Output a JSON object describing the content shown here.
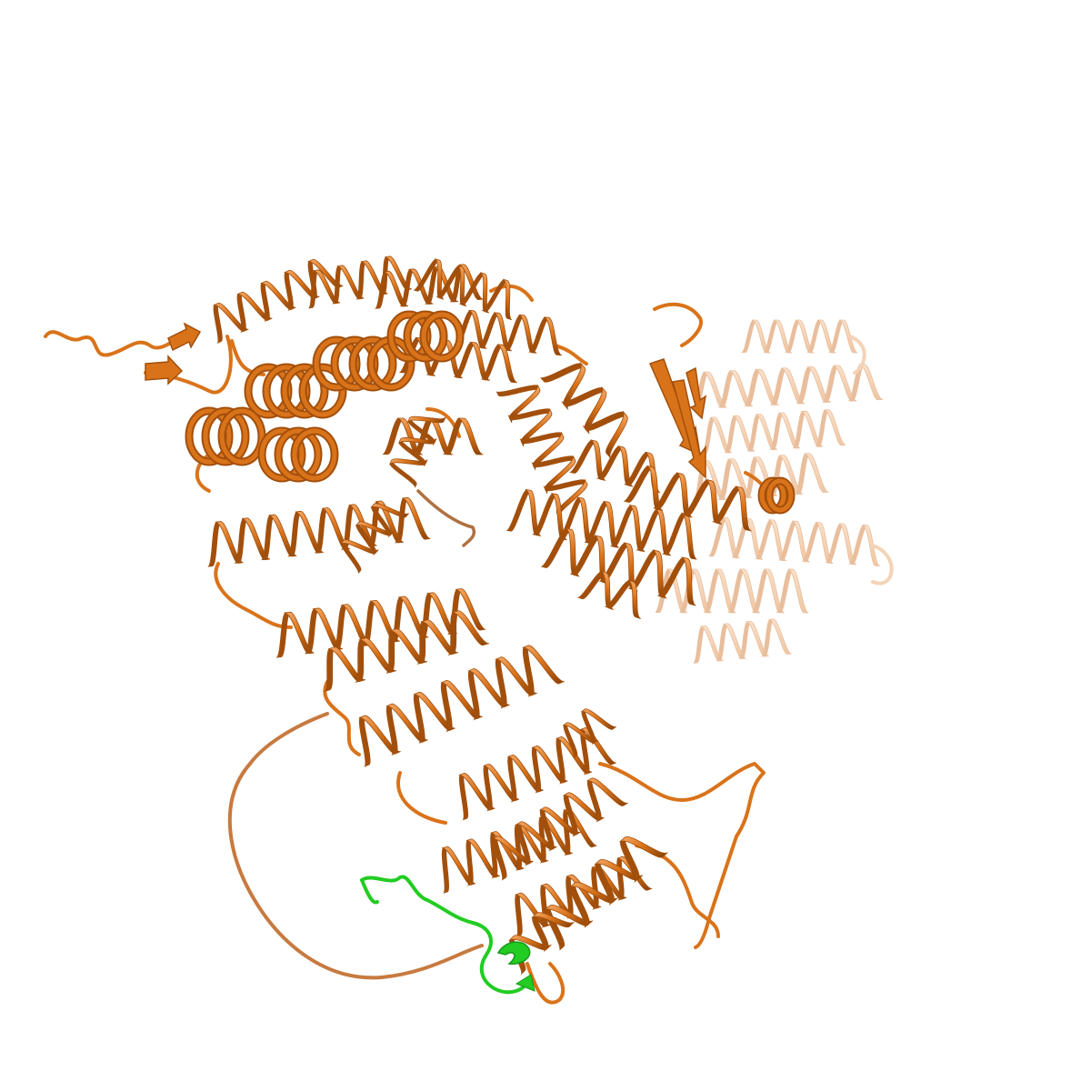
{
  "scene": {
    "background": "#ffffff",
    "colors": {
      "main_chain": "#d9731a",
      "main_chain_dark": "#a24f0c",
      "main_chain_light": "#f0a060",
      "ghost_domain": "#e9a06a",
      "peptide": "#22cc22",
      "peptide_dark": "#15991a"
    },
    "style": "cartoon",
    "chains": [
      {
        "name": "protein-chain",
        "color": "#d9731a"
      },
      {
        "name": "peptide-chain",
        "color": "#22cc22"
      }
    ]
  }
}
